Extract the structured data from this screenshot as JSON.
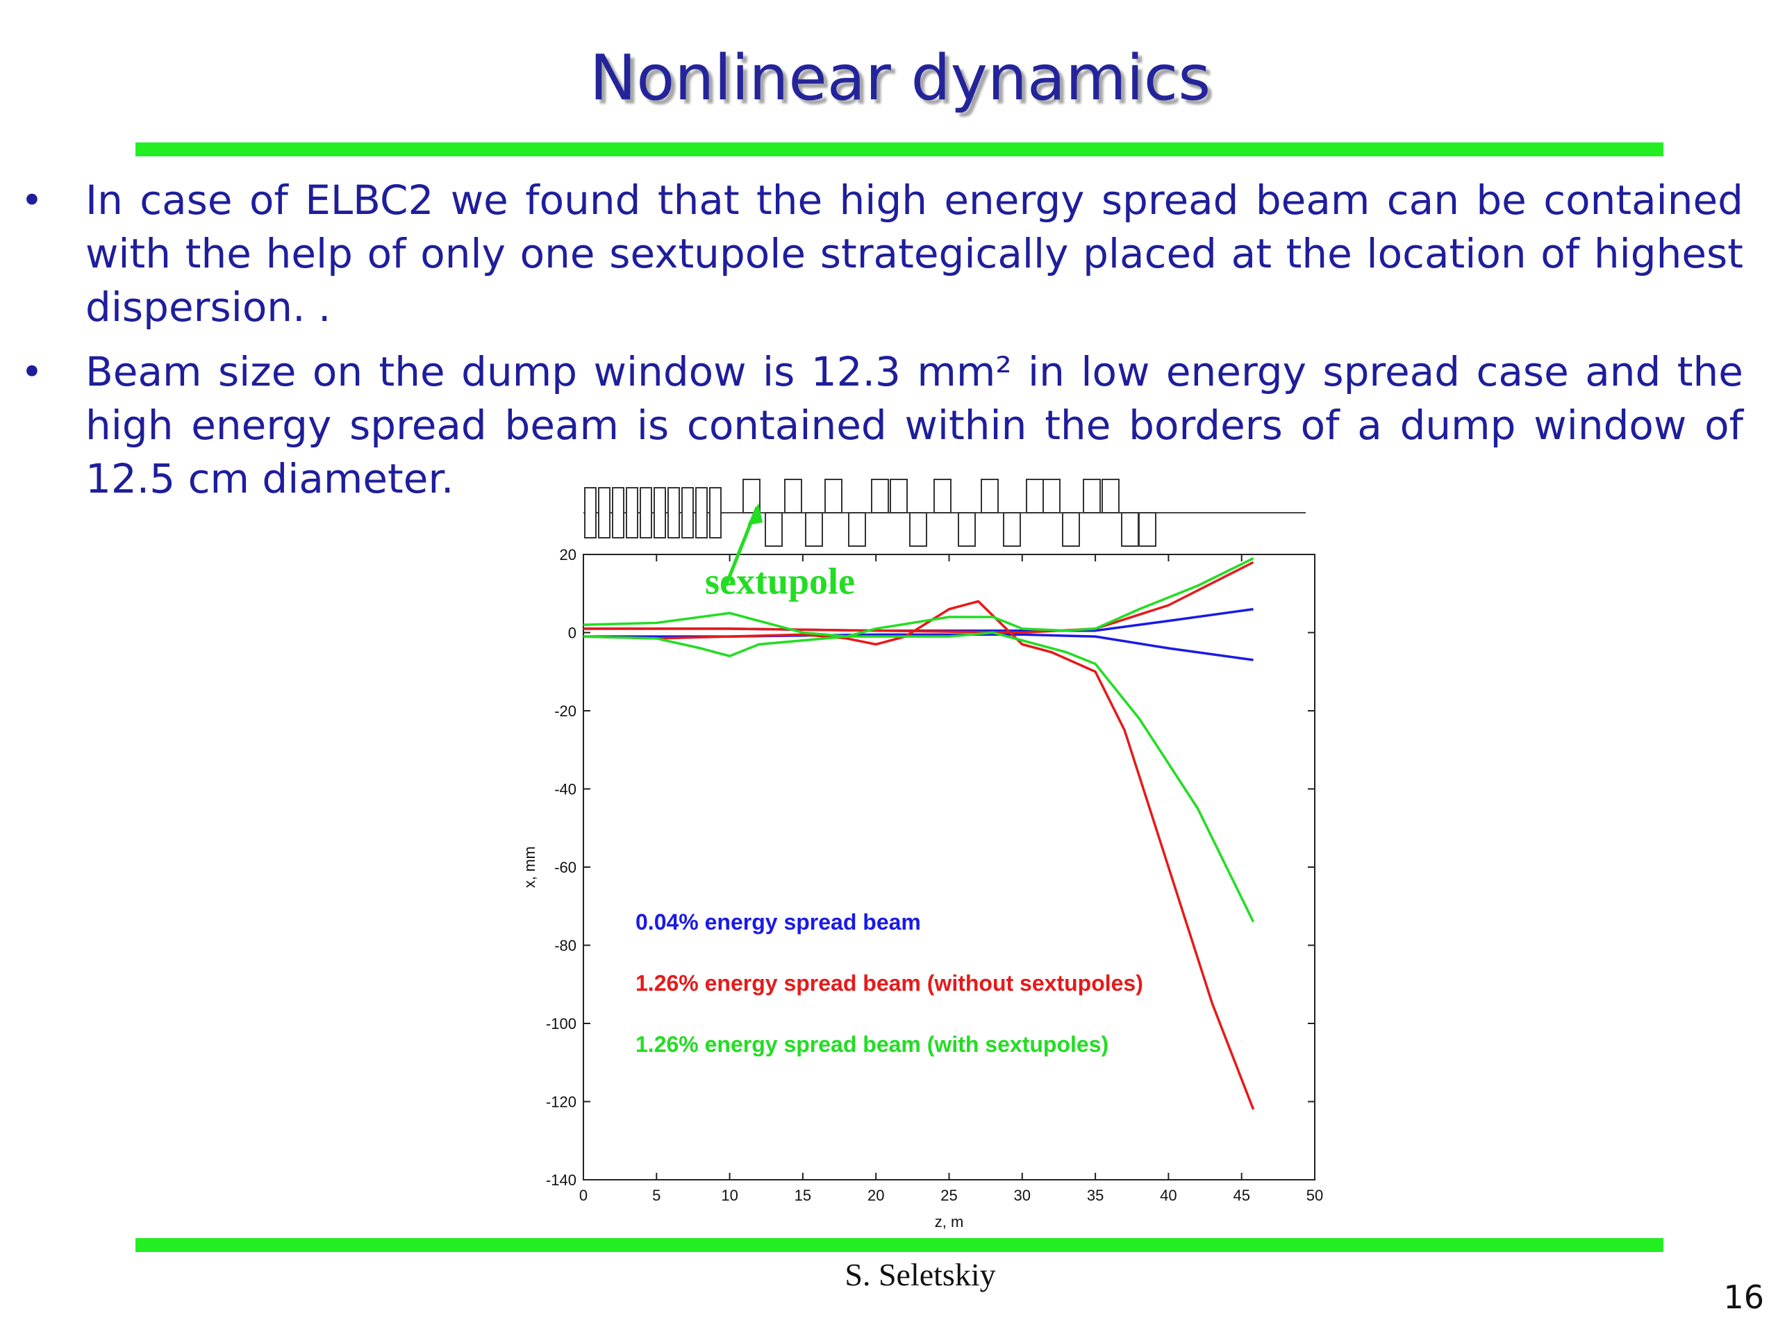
{
  "slide": {
    "title": "Nonlinear dynamics",
    "bullets": [
      "In case of ELBC2 we found that the high energy spread beam can be contained with the help of only one sextupole strategically placed at the location of highest dispersion. .",
      "Beam size on the dump window is 12.3 mm² in low energy spread case and the high energy spread beam is contained within the borders of a dump window of 12.5 cm diameter."
    ],
    "bullet_symbol": "•",
    "author": "S. Seletskiy",
    "page_number": "16",
    "colors": {
      "title": "#24249a",
      "text": "#1e1e9c",
      "rule": "#22ee22"
    }
  },
  "chart_data": {
    "type": "line",
    "xlabel": "z, m",
    "ylabel": "x, mm",
    "xlim": [
      0,
      50
    ],
    "ylim": [
      -140,
      20
    ],
    "xticks": [
      "0",
      "5",
      "10",
      "15",
      "20",
      "25",
      "30",
      "35",
      "40",
      "45",
      "50"
    ],
    "yticks": [
      "20",
      "0",
      "-20",
      "-40",
      "-60",
      "-80",
      "-100",
      "-120",
      "-140"
    ],
    "annotation": {
      "text": "sextupole",
      "color": "#22dd22"
    },
    "series": [
      {
        "name": "0.04% energy spread beam",
        "color": "#1a1ae6",
        "x": [
          0,
          10,
          20,
          30,
          35,
          40,
          45.8
        ],
        "y": [
          1,
          1,
          0.5,
          0.5,
          0.5,
          3,
          6
        ]
      },
      {
        "name": "0.04% energy spread beam",
        "color": "#1a1ae6",
        "x": [
          0,
          10,
          20,
          30,
          35,
          40,
          45.8
        ],
        "y": [
          -1,
          -1,
          -0.5,
          -0.5,
          -1,
          -4,
          -7
        ]
      },
      {
        "name": "1.26% energy spread beam (without sextupoles)",
        "color": "#e61a1a",
        "x": [
          0,
          5,
          10,
          15,
          18,
          20,
          22,
          25,
          27,
          30,
          32,
          35,
          37,
          40,
          43,
          45.8
        ],
        "y": [
          -1,
          -1.5,
          -1,
          -0.5,
          -1.5,
          -3,
          -1,
          6,
          8,
          -3,
          -5,
          -10,
          -25,
          -60,
          -95,
          -122
        ]
      },
      {
        "name": "1.26% energy spread beam (without sextupoles)",
        "color": "#e61a1a",
        "x": [
          0,
          10,
          20,
          30,
          35,
          40,
          45.8
        ],
        "y": [
          1,
          1,
          0.5,
          0,
          1,
          7,
          18
        ]
      },
      {
        "name": "1.26% energy spread beam (with sextupoles)",
        "color": "#22dd22",
        "x": [
          0,
          5,
          8,
          10,
          12,
          15,
          18,
          20,
          25,
          28,
          30,
          33,
          35,
          38,
          42,
          45.8
        ],
        "y": [
          2,
          2.5,
          4,
          5,
          3,
          0,
          -1,
          1,
          4,
          4,
          1,
          0.5,
          1,
          6,
          12,
          19
        ]
      },
      {
        "name": "1.26% energy spread beam (with sextupoles)",
        "color": "#22dd22",
        "x": [
          0,
          5,
          8,
          10,
          12,
          15,
          18,
          20,
          25,
          28,
          30,
          33,
          35,
          38,
          42,
          45.8
        ],
        "y": [
          -1,
          -1.5,
          -4,
          -6,
          -3,
          -2,
          -1,
          -1,
          -1,
          0,
          -2,
          -5,
          -8,
          -22,
          -45,
          -74
        ]
      }
    ],
    "legend": [
      {
        "text": "0.04% energy spread beam",
        "color": "#1a1ae6"
      },
      {
        "text": "1.26% energy spread beam (without sextupoles)",
        "color": "#e61a1a"
      },
      {
        "text": "1.26% energy spread beam (with sextupoles)",
        "color": "#22dd22"
      }
    ]
  }
}
